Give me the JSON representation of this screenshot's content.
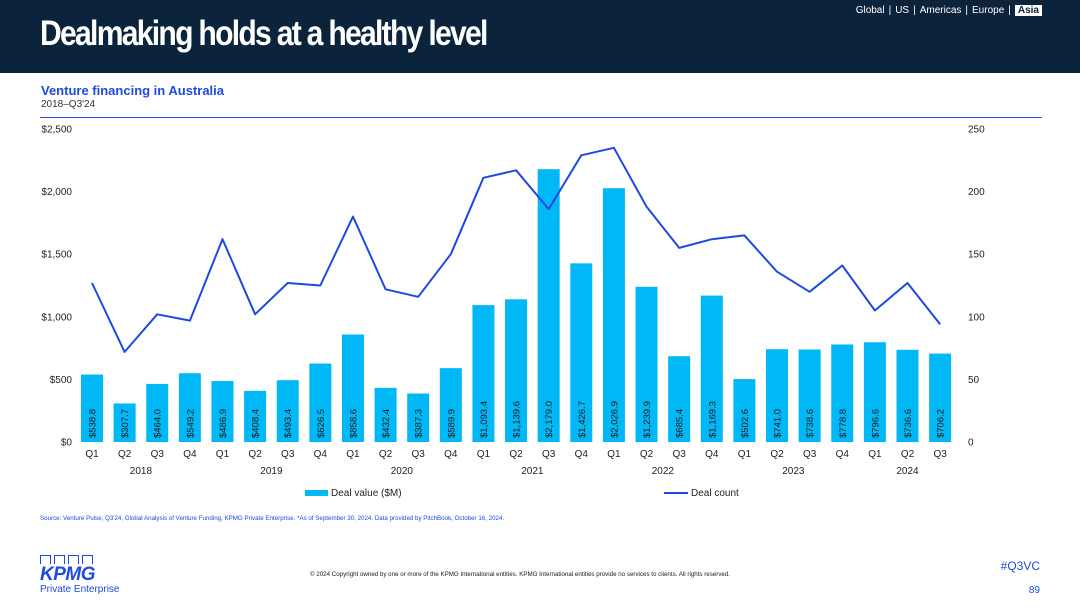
{
  "header": {
    "title": "Dealmaking holds at a healthy level",
    "regions": [
      {
        "label": "Global",
        "active": false
      },
      {
        "label": "US",
        "active": false
      },
      {
        "label": "Americas",
        "active": false
      },
      {
        "label": "Europe",
        "active": false
      },
      {
        "label": "Asia",
        "active": true
      }
    ],
    "separator": "|"
  },
  "chart_data": {
    "type": "bar",
    "title": "Venture financing in Australia",
    "subtitle": "2018–Q3'24",
    "quarters": [
      "Q1",
      "Q2",
      "Q3",
      "Q4",
      "Q1",
      "Q2",
      "Q3",
      "Q4",
      "Q1",
      "Q2",
      "Q3",
      "Q4",
      "Q1",
      "Q2",
      "Q3",
      "Q4",
      "Q1",
      "Q2",
      "Q3",
      "Q4",
      "Q1",
      "Q2",
      "Q3",
      "Q4",
      "Q1",
      "Q2",
      "Q3"
    ],
    "years": [
      {
        "label": "2018",
        "count": 4
      },
      {
        "label": "2019",
        "count": 4
      },
      {
        "label": "2020",
        "count": 4
      },
      {
        "label": "2021",
        "count": 4
      },
      {
        "label": "2022",
        "count": 4
      },
      {
        "label": "2023",
        "count": 4
      },
      {
        "label": "2024",
        "count": 3
      }
    ],
    "series": [
      {
        "name": "Deal value ($M)",
        "type": "bar",
        "axis": "left",
        "color": "#00b8f5",
        "values": [
          538.8,
          307.7,
          464.0,
          549.2,
          486.9,
          408.4,
          493.4,
          626.5,
          858.6,
          432.4,
          387.3,
          589.9,
          1093.4,
          1139.6,
          2179.0,
          1426.7,
          2026.9,
          1239.9,
          685.4,
          1169.3,
          502.6,
          741.0,
          738.6,
          778.8,
          796.6,
          736.6,
          706.2
        ],
        "labels": [
          "$538.8",
          "$307.7",
          "$464.0",
          "$549.2",
          "$486.9",
          "$408.4",
          "$493.4",
          "$626.5",
          "$858.6",
          "$432.4",
          "$387.3",
          "$589.9",
          "$1,093.4",
          "$1,139.6",
          "$2,179.0",
          "$1,426.7",
          "$2,026.9",
          "$1,239.9",
          "$685.4",
          "$1,169.3",
          "$502.6",
          "$741.0",
          "$738.6",
          "$778.8",
          "$796.6",
          "$736.6",
          "$706.2"
        ]
      },
      {
        "name": "Deal count",
        "type": "line",
        "axis": "right",
        "color": "#1e49e2",
        "values": [
          127,
          72,
          102,
          97,
          162,
          102,
          127,
          125,
          180,
          122,
          116,
          150,
          211,
          217,
          186,
          229,
          235,
          188,
          155,
          162,
          165,
          136,
          120,
          141,
          105,
          127,
          94
        ]
      }
    ],
    "y_left": {
      "min": 0,
      "max": 2500,
      "ticks": [
        0,
        500,
        1000,
        1500,
        2000,
        2500
      ],
      "tick_labels": [
        "$0",
        "$500",
        "$1,000",
        "$1,500",
        "$2,000",
        "$2,500"
      ]
    },
    "y_right": {
      "min": 0,
      "max": 250,
      "ticks": [
        0,
        50,
        100,
        150,
        200,
        250
      ],
      "tick_labels": [
        "0",
        "50",
        "100",
        "150",
        "200",
        "250"
      ]
    },
    "legend_position": "bottom",
    "grid": false
  },
  "footer": {
    "source": "Source: Venture Pulse, Q3'24, Global Analysis of Venture Funding, KPMG Private Enterprise. *As of September 30, 2024. Data provided by PitchBook, October 16, 2024.",
    "copyright": "© 2024 Copyright owned by one or more of the KPMG International entities. KPMG International entities provide no services to clients. All rights reserved.",
    "logo_word": "KPMG",
    "logo_sub": "Private Enterprise",
    "hashtag": "#Q3VC",
    "page": "89"
  }
}
